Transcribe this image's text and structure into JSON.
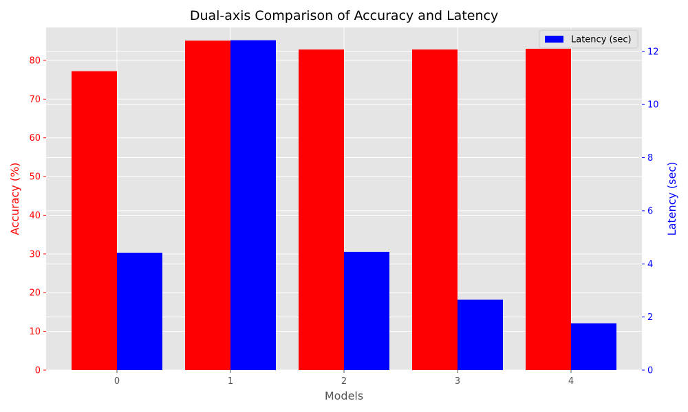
{
  "chart_data": {
    "type": "bar",
    "title": "Dual-axis Comparison of Accuracy and Latency",
    "xlabel": "Models",
    "ylabel_left": "Accuracy (%)",
    "ylabel_right": "Latency (sec)",
    "categories": [
      "0",
      "1",
      "2",
      "3",
      "4"
    ],
    "series": [
      {
        "key": "accuracy",
        "axis": "left",
        "color": "#ff0000",
        "values": [
          77.2,
          85.1,
          82.8,
          82.8,
          83.0
        ]
      },
      {
        "key": "latency",
        "name": "Latency (sec)",
        "axis": "right",
        "color": "#0000ff",
        "values": [
          4.42,
          12.42,
          4.45,
          2.65,
          1.76
        ]
      }
    ],
    "ylim_left": [
      0,
      88.5
    ],
    "ylim_right": [
      0,
      12.9
    ],
    "yticks_left": [
      "0",
      "10",
      "20",
      "30",
      "40",
      "50",
      "60",
      "70",
      "80"
    ],
    "yticks_right": [
      "0",
      "2",
      "4",
      "6",
      "8",
      "10",
      "12"
    ],
    "left_axis_color": "#ff0000",
    "right_axis_color": "#0000ff",
    "background": "#e5e5e5",
    "grid": true,
    "legend_position": "top-right"
  }
}
